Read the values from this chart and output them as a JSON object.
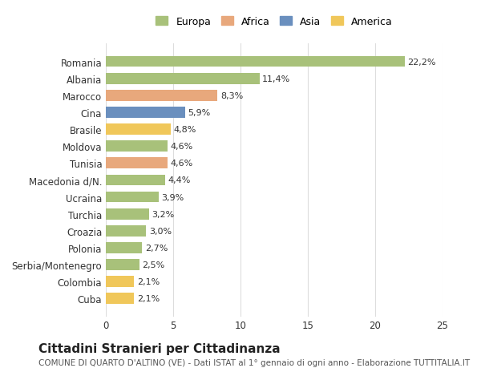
{
  "categories": [
    "Romania",
    "Albania",
    "Marocco",
    "Cina",
    "Brasile",
    "Moldova",
    "Tunisia",
    "Macedonia d/N.",
    "Ucraina",
    "Turchia",
    "Croazia",
    "Polonia",
    "Serbia/Montenegro",
    "Colombia",
    "Cuba"
  ],
  "values": [
    22.2,
    11.4,
    8.3,
    5.9,
    4.8,
    4.6,
    4.6,
    4.4,
    3.9,
    3.2,
    3.0,
    2.7,
    2.5,
    2.1,
    2.1
  ],
  "colors": [
    "#a8c17a",
    "#a8c17a",
    "#e8a87c",
    "#6a8fbe",
    "#f0c75a",
    "#a8c17a",
    "#e8a87c",
    "#a8c17a",
    "#a8c17a",
    "#a8c17a",
    "#a8c17a",
    "#a8c17a",
    "#a8c17a",
    "#f0c75a",
    "#f0c75a"
  ],
  "labels": [
    "22,2%",
    "11,4%",
    "8,3%",
    "5,9%",
    "4,8%",
    "4,6%",
    "4,6%",
    "4,4%",
    "3,9%",
    "3,2%",
    "3,0%",
    "2,7%",
    "2,5%",
    "2,1%",
    "2,1%"
  ],
  "legend": [
    {
      "label": "Europa",
      "color": "#a8c17a"
    },
    {
      "label": "Africa",
      "color": "#e8a87c"
    },
    {
      "label": "Asia",
      "color": "#6a8fbe"
    },
    {
      "label": "America",
      "color": "#f0c75a"
    }
  ],
  "xlim": [
    0,
    25
  ],
  "xticks": [
    0,
    5,
    10,
    15,
    20,
    25
  ],
  "title": "Cittadini Stranieri per Cittadinanza",
  "subtitle": "COMUNE DI QUARTO D'ALTINO (VE) - Dati ISTAT al 1° gennaio di ogni anno - Elaborazione TUTTITALIA.IT",
  "background_color": "#ffffff",
  "grid_color": "#dddddd",
  "bar_height": 0.65,
  "tick_fontsize": 8.5,
  "title_fontsize": 11,
  "subtitle_fontsize": 7.5,
  "value_label_fontsize": 8.0,
  "legend_fontsize": 9.0
}
